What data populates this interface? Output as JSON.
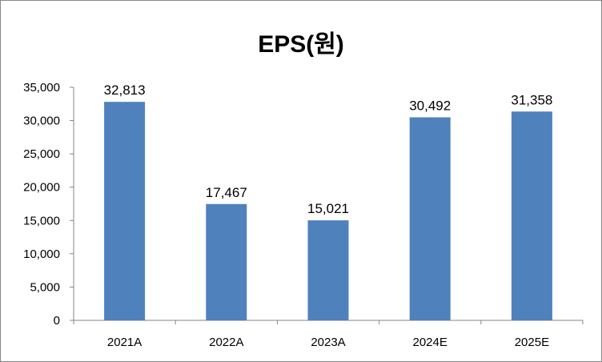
{
  "chart_data": {
    "type": "bar",
    "title": "EPS(원)",
    "categories": [
      "2021A",
      "2022A",
      "2023A",
      "2024E",
      "2025E"
    ],
    "values": [
      32813,
      17467,
      15021,
      30492,
      31358
    ],
    "data_labels": [
      "32,813",
      "17,467",
      "15,021",
      "30,492",
      "31,358"
    ],
    "ylim": [
      0,
      35000
    ],
    "yticks": [
      "0",
      "5,000",
      "10,000",
      "15,000",
      "20,000",
      "25,000",
      "30,000",
      "35,000"
    ],
    "grid": false,
    "legend": "none",
    "bar_color": "#4F81BD"
  }
}
